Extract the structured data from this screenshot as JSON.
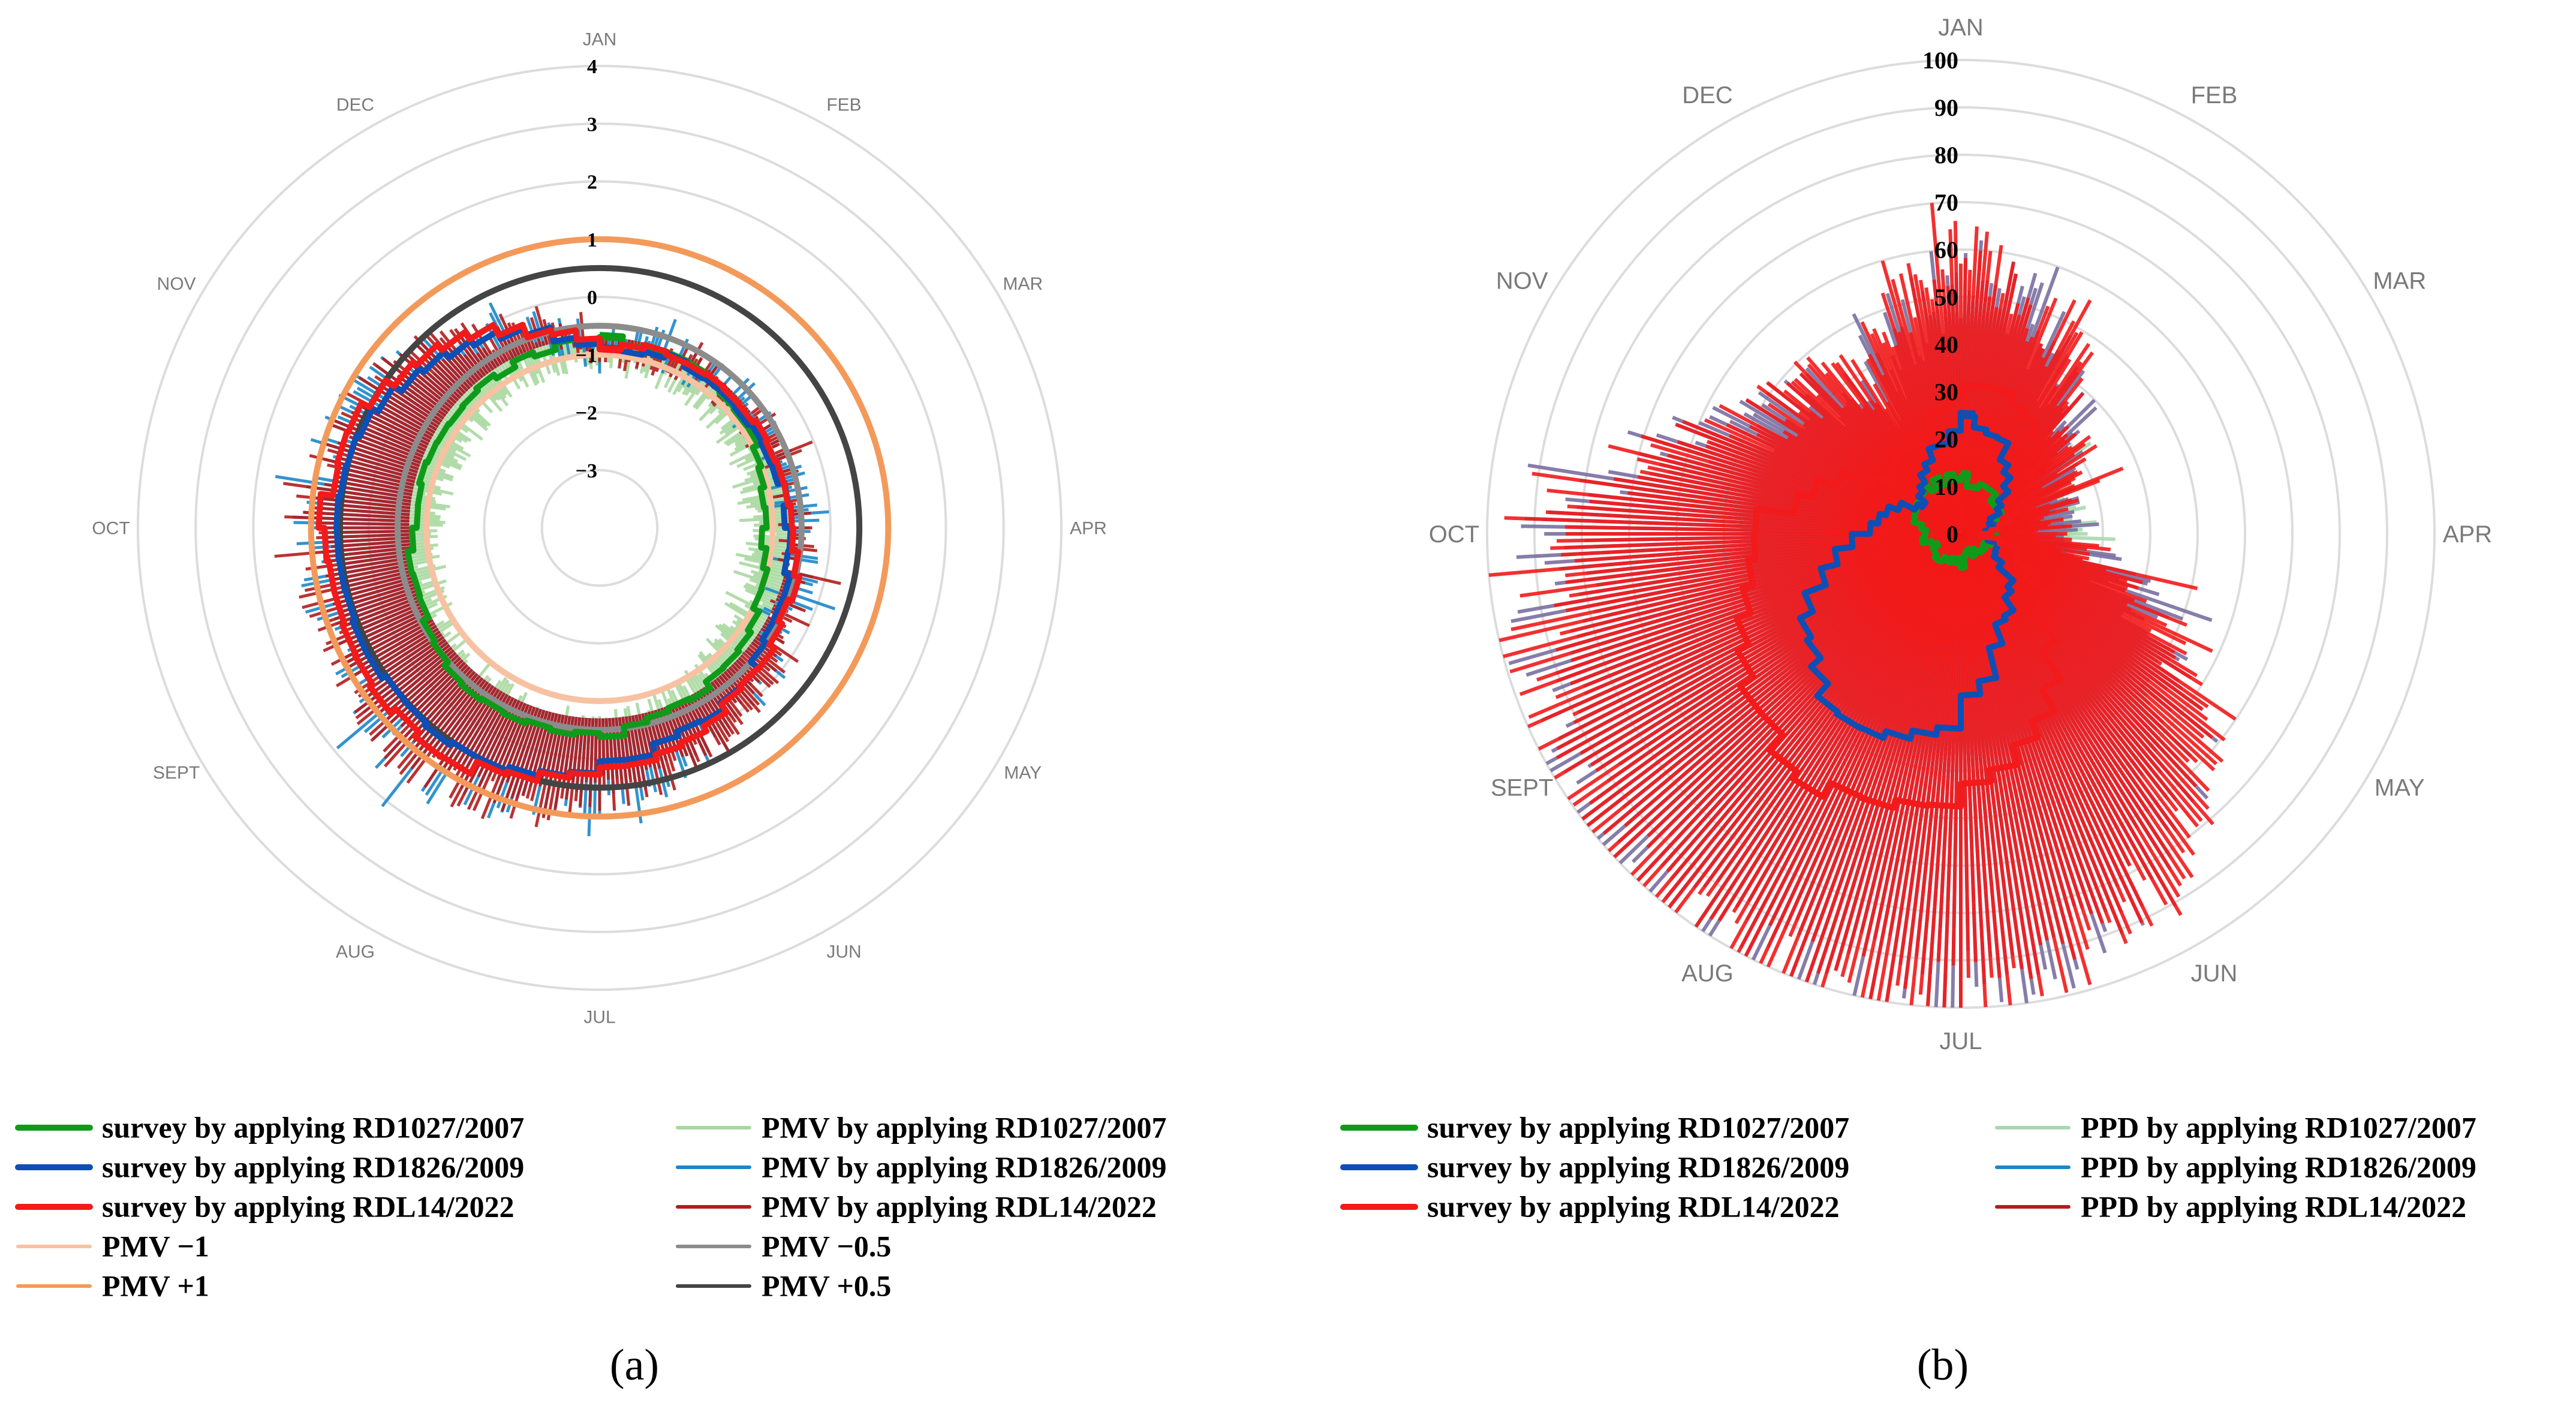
{
  "figure": {
    "panel_a_label": "(a)",
    "panel_b_label": "(b)",
    "colors": {
      "survey_rd1027": "#0f9b1a",
      "survey_rd1826": "#0d4fb5",
      "survey_rdl14": "#f21a1a",
      "pmv_rd1027": "#a8d8a0",
      "pmv_rd1826": "#1c87c9",
      "pmv_rdl14": "#b41c1c",
      "pmv_minus1": "#f7c2a1",
      "pmv_plus1": "#f39a5b",
      "pmv_minus05": "#8c8c8c",
      "pmv_plus05": "#444444",
      "ppd_rd1027": "#a8d8b0",
      "ppd_mixed": "#7a6fa0",
      "grid": "#dcdcdc"
    }
  },
  "chart_data": [
    {
      "id": "panel-a",
      "type": "radar",
      "title": "",
      "quantity": "PMV",
      "months": [
        "JAN",
        "FEB",
        "MAR",
        "APR",
        "MAY",
        "JUN",
        "JUL",
        "AUG",
        "SEPT",
        "OCT",
        "NOV",
        "DEC"
      ],
      "r_range": [
        -4,
        4
      ],
      "r_ticks": [
        "4",
        "3",
        "2",
        "1",
        "0",
        "−1",
        "−2",
        "−3"
      ],
      "r_tick_values": [
        4,
        3,
        2,
        1,
        0,
        -1,
        -2,
        -3
      ],
      "series": [
        {
          "name": "survey by applying RD1027/2007",
          "style": "step",
          "values": [
            -0.7,
            -0.8,
            -1.0,
            -1.2,
            -0.9,
            -0.6,
            -0.4,
            -0.4,
            -0.6,
            -0.8,
            -0.9,
            -0.8
          ]
        },
        {
          "name": "survey by applying RD1826/2009",
          "style": "step",
          "values": [
            -0.9,
            -0.8,
            -0.8,
            -0.7,
            -0.5,
            -0.2,
            0.2,
            0.6,
            0.5,
            0.6,
            0.3,
            -0.3
          ]
        },
        {
          "name": "survey by applying RDL14/2022",
          "style": "step",
          "values": [
            -0.85,
            -0.75,
            -0.7,
            -0.6,
            -0.4,
            -0.1,
            0.3,
            0.8,
            0.8,
            0.8,
            0.5,
            -0.2
          ]
        },
        {
          "name": "PMV by applying RD1027/2007",
          "style": "bars",
          "values": [
            -1.1,
            -1.2,
            -1.3,
            -1.4,
            -1.3,
            -0.9,
            -0.6,
            -0.7,
            -0.9,
            -1.1,
            -1.3,
            -1.1
          ]
        },
        {
          "name": "PMV by applying RD1826/2009",
          "style": "bars",
          "values": [
            -0.9,
            -0.7,
            -0.8,
            -0.6,
            -0.5,
            0.0,
            0.6,
            1.1,
            0.9,
            0.9,
            0.6,
            -0.2
          ]
        },
        {
          "name": "PMV by applying RDL14/2022",
          "style": "bars",
          "values": [
            -1.0,
            -0.8,
            -0.8,
            -0.6,
            -0.4,
            0.1,
            0.7,
            1.2,
            1.0,
            1.0,
            0.7,
            -0.1
          ]
        }
      ],
      "reference_circles": [
        {
          "name": "PMV −1",
          "value": -1
        },
        {
          "name": "PMV +1",
          "value": 1
        },
        {
          "name": "PMV −0.5",
          "value": -0.5
        },
        {
          "name": "PMV +0.5",
          "value": 0.5
        }
      ]
    },
    {
      "id": "panel-b",
      "type": "radar",
      "title": "",
      "quantity": "PPD",
      "months": [
        "JAN",
        "FEB",
        "MAR",
        "APR",
        "MAY",
        "JUN",
        "JUL",
        "AUG",
        "SEPT",
        "OCT",
        "NOV",
        "DEC"
      ],
      "r_range": [
        0,
        100
      ],
      "r_ticks": [
        "100",
        "90",
        "80",
        "70",
        "60",
        "50",
        "40",
        "30",
        "20",
        "10",
        "0"
      ],
      "r_tick_values": [
        100,
        90,
        80,
        70,
        60,
        50,
        40,
        30,
        20,
        10,
        0
      ],
      "series": [
        {
          "name": "survey by applying RD1027/2007",
          "style": "step",
          "values": [
            12,
            10,
            8,
            6,
            5,
            5,
            6,
            6,
            6,
            8,
            10,
            12
          ]
        },
        {
          "name": "survey by applying RD1826/2009",
          "style": "step",
          "values": [
            25,
            18,
            8,
            6,
            10,
            20,
            40,
            48,
            35,
            20,
            10,
            15
          ]
        },
        {
          "name": "survey by applying RDL14/2022",
          "style": "step",
          "values": [
            32,
            28,
            15,
            5,
            18,
            40,
            58,
            62,
            52,
            42,
            20,
            20
          ]
        },
        {
          "name": "PPD by applying RD1027/2007",
          "style": "bars",
          "values": [
            38,
            30,
            20,
            22,
            18,
            22,
            30,
            30,
            35,
            40,
            22,
            25
          ]
        },
        {
          "name": "PPD by applying RD1826/2009",
          "style": "bars",
          "values": [
            55,
            42,
            20,
            15,
            50,
            80,
            95,
            98,
            95,
            85,
            45,
            35
          ]
        },
        {
          "name": "PPD by applying RDL14/2022",
          "style": "bars",
          "values": [
            60,
            45,
            22,
            16,
            55,
            85,
            98,
            100,
            98,
            88,
            48,
            38
          ]
        }
      ]
    }
  ],
  "legend_a": [
    {
      "label": "survey by applying RD1027/2007",
      "color_key": "survey_rd1027",
      "width": 10
    },
    {
      "label": "survey by applying RD1826/2009",
      "color_key": "survey_rd1826",
      "width": 10
    },
    {
      "label": "survey by applying RDL14/2022",
      "color_key": "survey_rdl14",
      "width": 10
    },
    {
      "label": "PMV −1",
      "color_key": "pmv_minus1",
      "width": 6
    },
    {
      "label": "PMV +1",
      "color_key": "pmv_plus1",
      "width": 6
    },
    {
      "label": "PMV by applying RD1027/2007",
      "color_key": "pmv_rd1027",
      "width": 6
    },
    {
      "label": "PMV by applying RD1826/2009",
      "color_key": "pmv_rd1826",
      "width": 6
    },
    {
      "label": "PMV by applying RDL14/2022",
      "color_key": "pmv_rdl14",
      "width": 6
    },
    {
      "label": "PMV −0.5",
      "color_key": "pmv_minus05",
      "width": 6
    },
    {
      "label": "PMV +0.5",
      "color_key": "pmv_plus05",
      "width": 6
    }
  ],
  "legend_b": [
    {
      "label": "survey by applying RD1027/2007",
      "color_key": "survey_rd1027",
      "width": 10
    },
    {
      "label": "survey by applying RD1826/2009",
      "color_key": "survey_rd1826",
      "width": 10
    },
    {
      "label": "survey by applying RDL14/2022",
      "color_key": "survey_rdl14",
      "width": 10
    },
    {
      "label": "PPD by applying RD1027/2007",
      "color_key": "ppd_rd1027",
      "width": 6
    },
    {
      "label": "PPD by applying RD1826/2009",
      "color_key": "pmv_rd1826",
      "width": 6
    },
    {
      "label": "PPD by applying RDL14/2022",
      "color_key": "pmv_rdl14",
      "width": 6
    }
  ]
}
